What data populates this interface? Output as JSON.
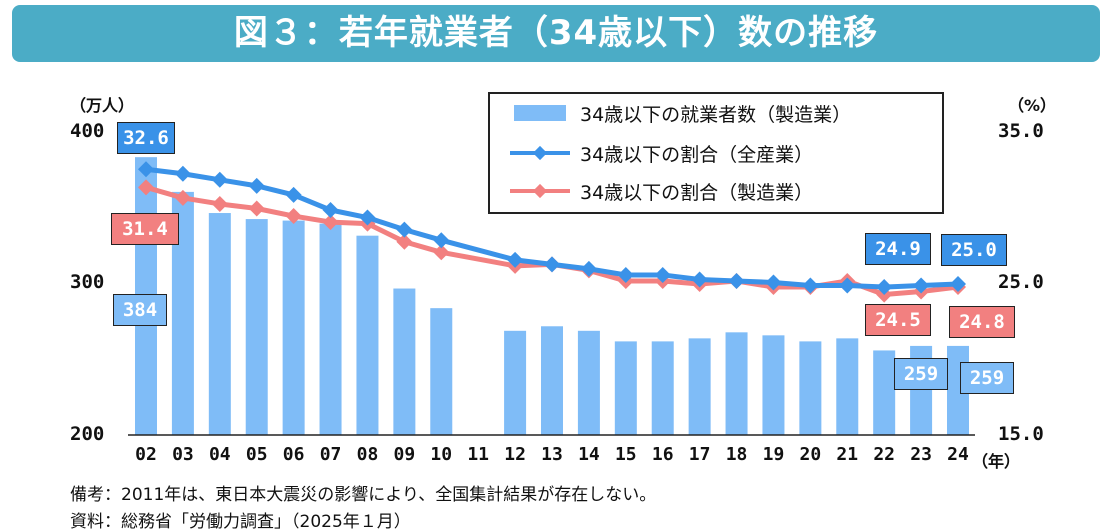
{
  "title": "図３：若年就業者（34歳以下）数の推移",
  "chart_data": {
    "type": "bar+line",
    "x_unit_label": "（年）",
    "categories": [
      "02",
      "03",
      "04",
      "05",
      "06",
      "07",
      "08",
      "09",
      "10",
      "11",
      "12",
      "13",
      "14",
      "15",
      "16",
      "17",
      "18",
      "19",
      "20",
      "21",
      "22",
      "23",
      "24"
    ],
    "left_axis": {
      "label": "（万人）",
      "ylim": [
        200,
        400
      ],
      "ticks": [
        "200",
        "300",
        "400"
      ]
    },
    "right_axis": {
      "label": "（%）",
      "ylim": [
        15.0,
        35.0
      ],
      "ticks": [
        "15.0",
        "25.0",
        "35.0"
      ]
    },
    "grid": false,
    "legend_position": "top-right",
    "series": [
      {
        "name": "34歳以下の就業者数（製造業）",
        "type": "bar",
        "axis": "left",
        "color": "#7fbcf7",
        "values": [
          384,
          361,
          347,
          343,
          342,
          340,
          332,
          297,
          284,
          null,
          269,
          272,
          269,
          262,
          262,
          264,
          268,
          266,
          262,
          264,
          256,
          259,
          259
        ]
      },
      {
        "name": "34歳以下の割合（全産業）",
        "type": "line",
        "axis": "right",
        "color": "#3a92e8",
        "values": [
          32.6,
          32.3,
          31.9,
          31.5,
          30.9,
          29.9,
          29.4,
          28.6,
          27.9,
          null,
          26.6,
          26.3,
          26.0,
          25.6,
          25.6,
          25.3,
          25.2,
          25.1,
          24.9,
          24.9,
          24.8,
          24.9,
          25.0
        ]
      },
      {
        "name": "34歳以下の割合（製造業）",
        "type": "line",
        "axis": "right",
        "color": "#f28080",
        "values": [
          31.4,
          30.7,
          30.3,
          30.0,
          29.5,
          29.1,
          29.0,
          27.8,
          27.1,
          null,
          26.2,
          26.3,
          25.9,
          25.2,
          25.2,
          25.0,
          25.2,
          24.8,
          24.8,
          25.2,
          24.3,
          24.5,
          24.8
        ]
      }
    ],
    "data_labels": {
      "bar_02": "384",
      "blue_02": "32.6",
      "red_02": "31.4",
      "blue_23": "24.9",
      "blue_24": "25.0",
      "red_23": "24.5",
      "red_24": "24.8",
      "bar_23": "259",
      "bar_24": "259"
    }
  },
  "notes": [
    "備考：2011年は、東日本大震災の影響により、全国集計結果が存在しない。",
    "資料：総務省「労働力調査」（2025年１月）"
  ]
}
